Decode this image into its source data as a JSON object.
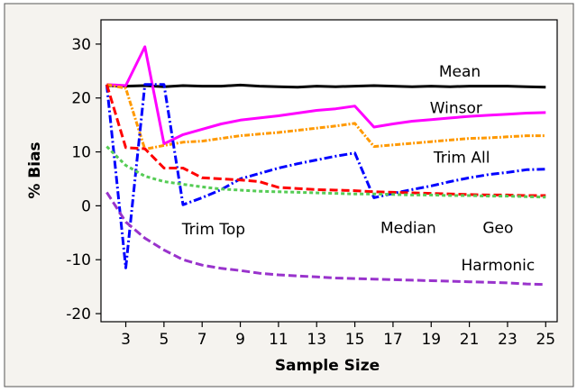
{
  "chart_data": {
    "type": "line",
    "title": "",
    "xlabel": "Sample Size",
    "ylabel": "% Bias",
    "xlim": [
      1.7,
      25.6
    ],
    "ylim": [
      -21.5,
      34.5
    ],
    "xticks": [
      3,
      5,
      7,
      9,
      11,
      13,
      15,
      17,
      19,
      21,
      23,
      25
    ],
    "yticks": [
      -20,
      -10,
      0,
      10,
      20,
      30
    ],
    "grid": false,
    "legend": "none (labels placed next to lines)",
    "series": [
      {
        "name": "Mean",
        "color": "#000000",
        "dash": "solid",
        "label_pos": [
          20.5,
          24.0
        ],
        "x": [
          2,
          3,
          4,
          5,
          6,
          7,
          8,
          9,
          10,
          11,
          12,
          13,
          14,
          15,
          16,
          17,
          18,
          19,
          20,
          21,
          22,
          23,
          24,
          25
        ],
        "y": [
          22.3,
          22.2,
          22.3,
          22.1,
          22.3,
          22.2,
          22.2,
          22.4,
          22.2,
          22.1,
          22.0,
          22.2,
          22.1,
          22.2,
          22.3,
          22.2,
          22.1,
          22.2,
          22.1,
          22.2,
          22.2,
          22.2,
          22.1,
          22.0
        ]
      },
      {
        "name": "Winsor",
        "color": "#ff00ff",
        "dash": "solid",
        "label_pos": [
          20.3,
          17.2
        ],
        "x": [
          2,
          3,
          4,
          5,
          6,
          7,
          8,
          9,
          10,
          11,
          12,
          13,
          14,
          15,
          16,
          17,
          18,
          19,
          20,
          21,
          22,
          23,
          24,
          25
        ],
        "y": [
          22.5,
          22.3,
          29.5,
          11.5,
          13.2,
          14.2,
          15.2,
          15.9,
          16.3,
          16.7,
          17.2,
          17.7,
          18.0,
          18.5,
          14.6,
          15.2,
          15.7,
          16.0,
          16.3,
          16.6,
          16.8,
          17.0,
          17.2,
          17.3
        ]
      },
      {
        "name": "Trim All",
        "color": "#ff9900",
        "dash": "6 2 2 2",
        "label_pos": [
          20.6,
          8.0
        ],
        "x": [
          2,
          3,
          4,
          5,
          6,
          7,
          8,
          9,
          10,
          11,
          12,
          13,
          14,
          15,
          16,
          17,
          18,
          19,
          20,
          21,
          22,
          23,
          24,
          25
        ],
        "y": [
          22.5,
          21.8,
          10.5,
          11.2,
          11.8,
          12.0,
          12.5,
          13.0,
          13.3,
          13.6,
          14.0,
          14.4,
          14.8,
          15.3,
          11.0,
          11.3,
          11.6,
          11.9,
          12.2,
          12.5,
          12.6,
          12.8,
          13.0,
          13.0
        ]
      },
      {
        "name": "Trim Top",
        "color": "#0000ff",
        "dash": "9 3 2 3",
        "label_pos": [
          7.6,
          -5.3
        ],
        "x": [
          2,
          3,
          4,
          5,
          6,
          7,
          8,
          9,
          10,
          11,
          12,
          13,
          14,
          15,
          16,
          17,
          18,
          19,
          20,
          21,
          22,
          23,
          24,
          25
        ],
        "y": [
          22.5,
          -11.5,
          22.5,
          22.5,
          0.2,
          1.5,
          3.0,
          5.0,
          6.0,
          7.0,
          7.8,
          8.5,
          9.2,
          9.8,
          1.5,
          2.3,
          3.0,
          3.7,
          4.5,
          5.2,
          5.8,
          6.2,
          6.7,
          6.8
        ]
      },
      {
        "name": "Median",
        "color": "#ff0000",
        "dash": "9 4",
        "label_pos": [
          17.8,
          -5.0
        ],
        "x": [
          2,
          3,
          4,
          5,
          6,
          7,
          8,
          9,
          10,
          11,
          12,
          13,
          14,
          15,
          16,
          17,
          18,
          19,
          20,
          21,
          22,
          23,
          24,
          25
        ],
        "y": [
          22.5,
          10.8,
          10.6,
          7.0,
          7.0,
          5.2,
          5.0,
          4.8,
          4.5,
          3.4,
          3.2,
          3.0,
          2.9,
          2.8,
          2.6,
          2.5,
          2.4,
          2.3,
          2.2,
          2.1,
          2.0,
          2.0,
          1.9,
          1.9
        ]
      },
      {
        "name": "Geo",
        "color": "#55cc55",
        "dash": "4 3",
        "label_pos": [
          22.5,
          -5.0
        ],
        "x": [
          2,
          3,
          4,
          5,
          6,
          7,
          8,
          9,
          10,
          11,
          12,
          13,
          14,
          15,
          16,
          17,
          18,
          19,
          20,
          21,
          22,
          23,
          24,
          25
        ],
        "y": [
          11.0,
          7.5,
          5.5,
          4.5,
          4.0,
          3.5,
          3.1,
          2.9,
          2.7,
          2.6,
          2.5,
          2.4,
          2.3,
          2.2,
          2.2,
          2.1,
          2.0,
          2.0,
          1.9,
          1.9,
          1.8,
          1.8,
          1.7,
          1.6
        ]
      },
      {
        "name": "Harmonic",
        "color": "#9933cc",
        "dash": "9 4",
        "label_pos": [
          22.5,
          -12.0
        ],
        "x": [
          2,
          3,
          4,
          5,
          6,
          7,
          8,
          9,
          10,
          11,
          12,
          13,
          14,
          15,
          16,
          17,
          18,
          19,
          20,
          21,
          22,
          23,
          24,
          25
        ],
        "y": [
          2.5,
          -3.0,
          -6.0,
          -8.2,
          -10.0,
          -11.0,
          -11.6,
          -12.0,
          -12.5,
          -12.8,
          -13.0,
          -13.2,
          -13.4,
          -13.5,
          -13.6,
          -13.7,
          -13.8,
          -13.9,
          -14.0,
          -14.1,
          -14.2,
          -14.3,
          -14.5,
          -14.6
        ]
      }
    ]
  }
}
